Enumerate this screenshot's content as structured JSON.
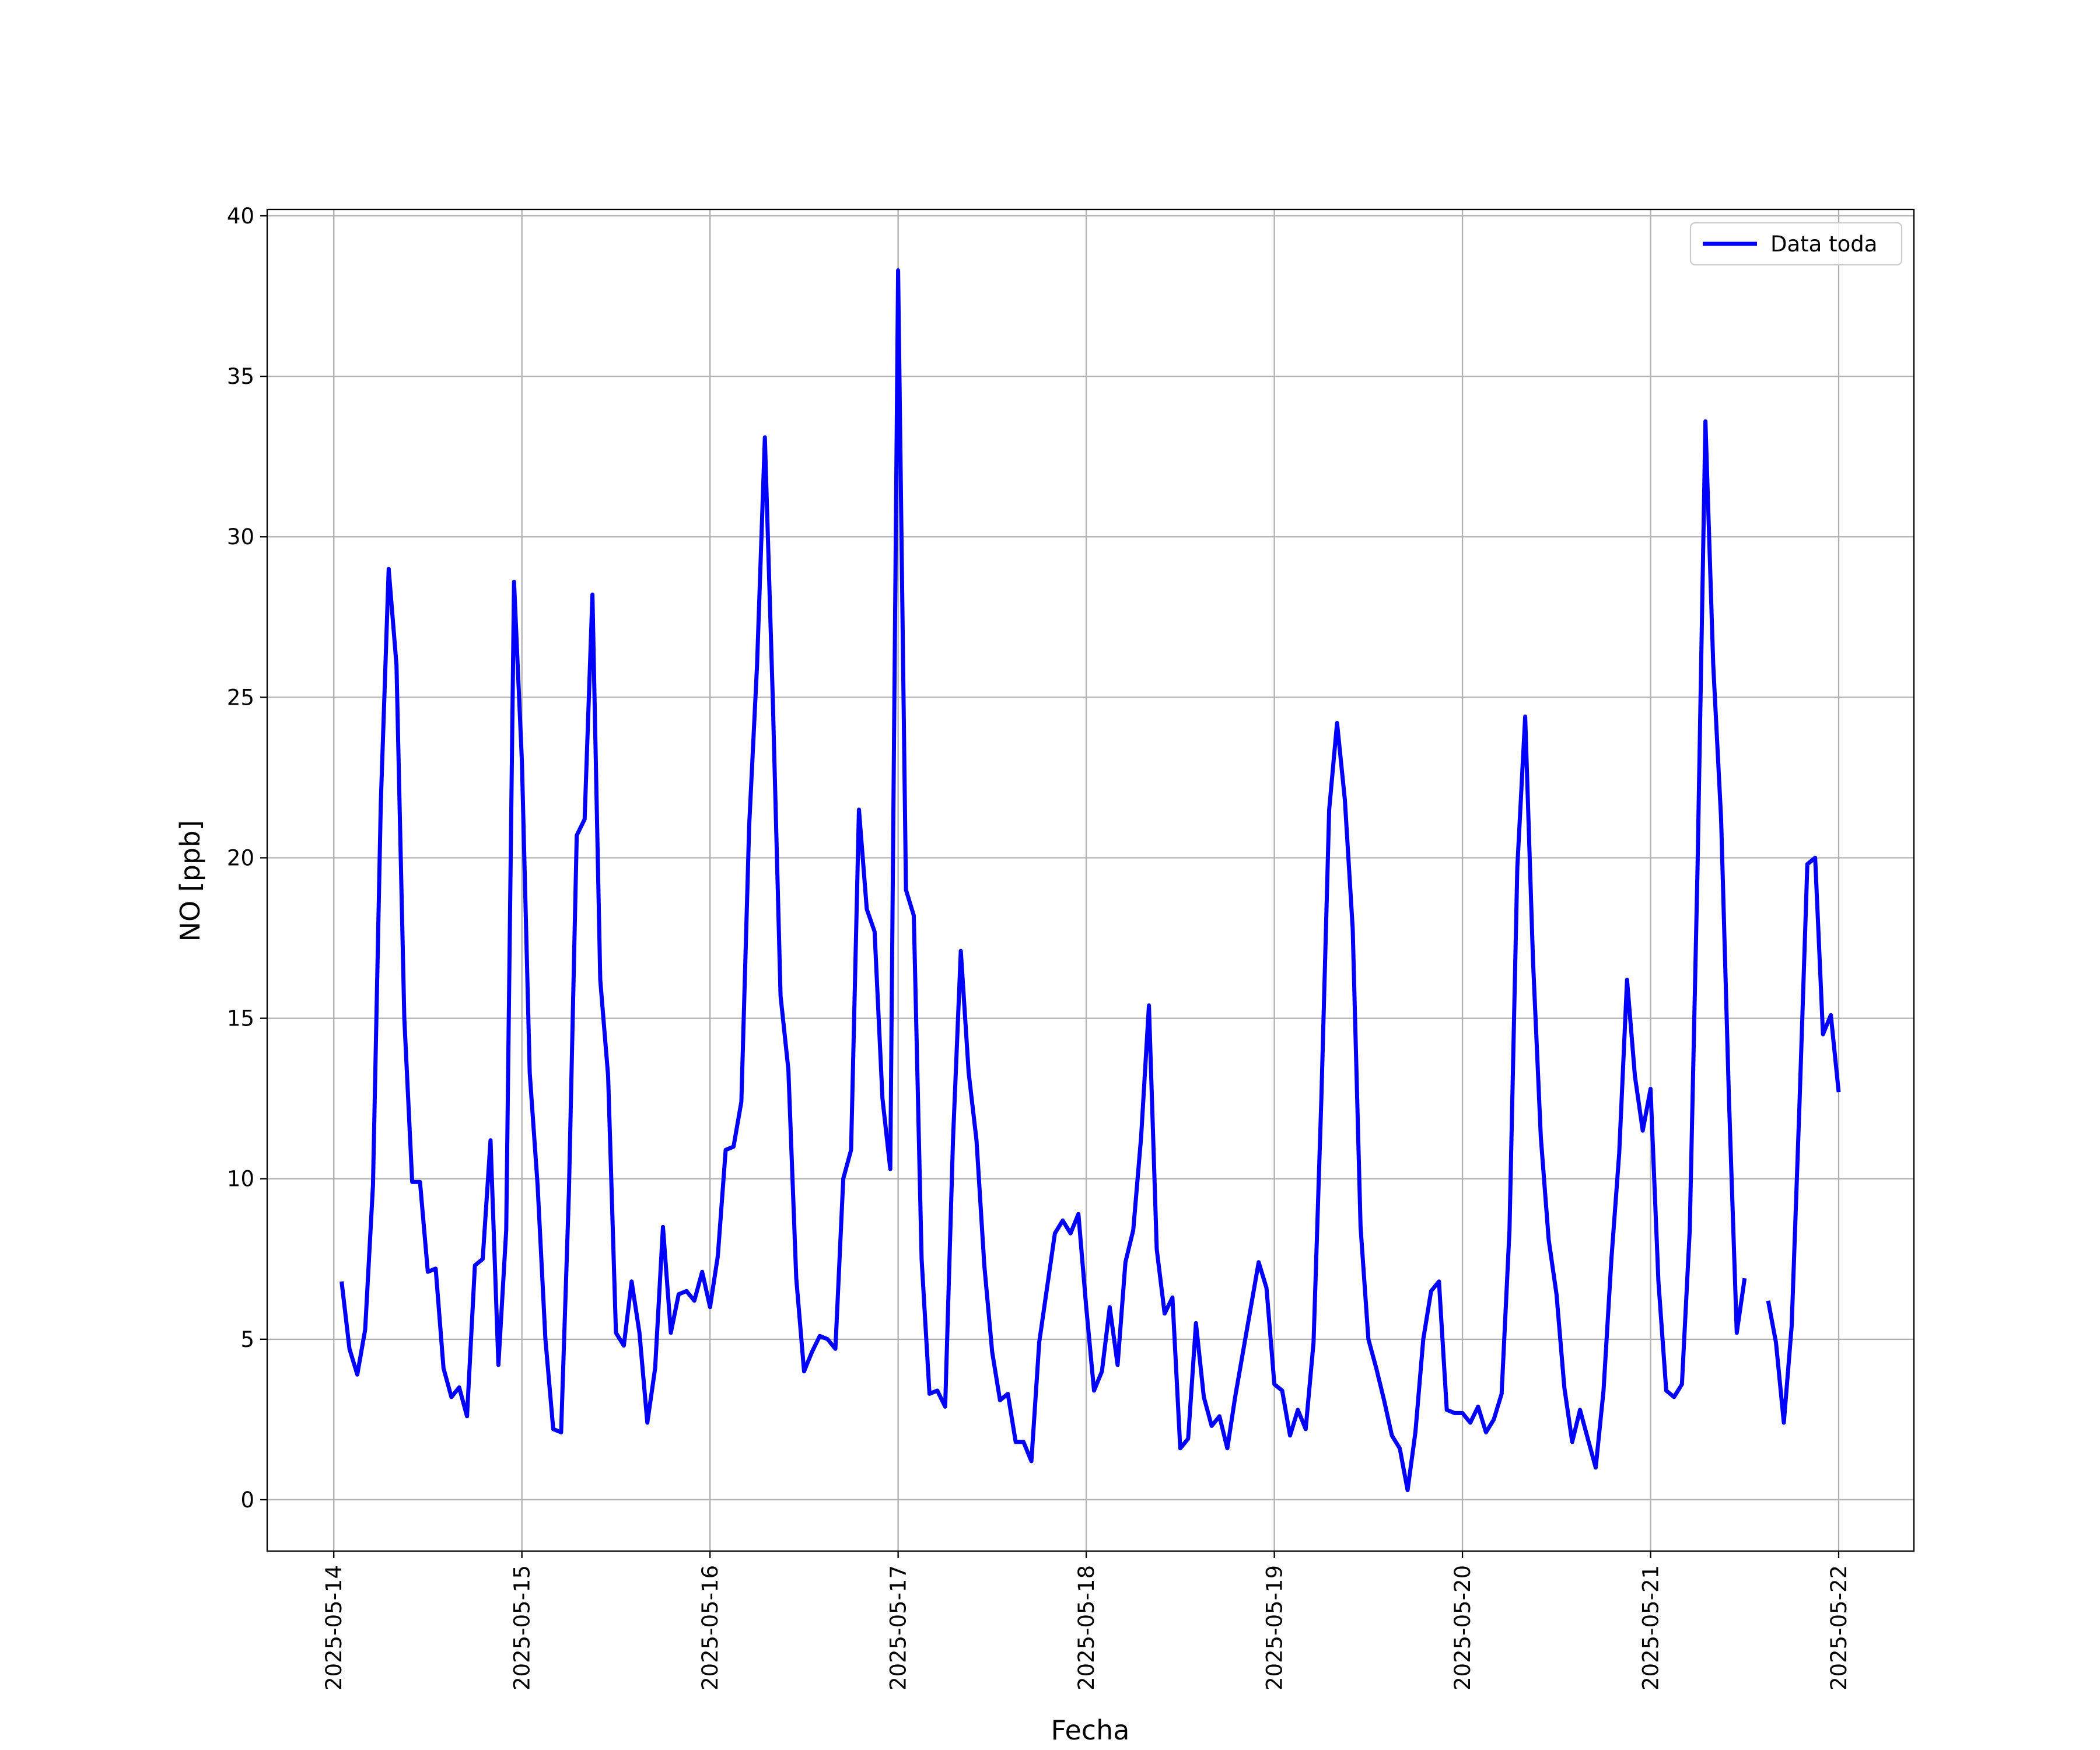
{
  "chart_data": {
    "type": "line",
    "x_label": "Fecha",
    "y_label": "NO [ppb]",
    "x": [
      1,
      2,
      3,
      4,
      5,
      6,
      7,
      8,
      9,
      10,
      11,
      12,
      13,
      14,
      15,
      16,
      17,
      18,
      19,
      20,
      21,
      22,
      23,
      24,
      25,
      26,
      27,
      28,
      29,
      30,
      31,
      32,
      33,
      34,
      35,
      36,
      37,
      38,
      39,
      40,
      41,
      42,
      43,
      44,
      45,
      46,
      47,
      48,
      49,
      50,
      51,
      52,
      53,
      54,
      55,
      56,
      57,
      58,
      59,
      60,
      61,
      62,
      63,
      64,
      65,
      66,
      67,
      68,
      69,
      70,
      71,
      72,
      73,
      74,
      75,
      76,
      77,
      78,
      79,
      80,
      81,
      82,
      83,
      84,
      85,
      86,
      87,
      88,
      89,
      90,
      91,
      92,
      93,
      94,
      95,
      96,
      97,
      98,
      99,
      100,
      101,
      102,
      103,
      104,
      105,
      106,
      107,
      108,
      109,
      110,
      111,
      112,
      113,
      114,
      115,
      116,
      117,
      118,
      119,
      120,
      121,
      122,
      123,
      124,
      125,
      126,
      127,
      128,
      129,
      130,
      131,
      132,
      133,
      134,
      135,
      136,
      137,
      138,
      139,
      140,
      141,
      142,
      143,
      144,
      145,
      146,
      147,
      148,
      149,
      150,
      151,
      152,
      153,
      154,
      155,
      156,
      157,
      158,
      159,
      160,
      161,
      162,
      163,
      164,
      165,
      166,
      167,
      168,
      169,
      170,
      171,
      172,
      173,
      174,
      175,
      176,
      177,
      178,
      179,
      180,
      181,
      182,
      183,
      184,
      185,
      186,
      187,
      188,
      189,
      190,
      191,
      192
    ],
    "series": [
      {
        "name": "Data toda",
        "color": "#0000ff",
        "values": [
          6.8,
          4.7,
          3.9,
          5.3,
          9.8,
          21.7,
          29.0,
          26.0,
          15.0,
          9.9,
          9.9,
          7.1,
          7.2,
          4.1,
          3.2,
          3.5,
          2.6,
          7.3,
          7.5,
          11.2,
          4.2,
          8.4,
          28.6,
          23.0,
          13.3,
          9.8,
          5.0,
          2.2,
          2.1,
          9.6,
          20.7,
          21.2,
          28.2,
          16.2,
          13.2,
          5.2,
          4.8,
          6.8,
          5.2,
          2.4,
          4.1,
          8.5,
          5.2,
          6.4,
          6.5,
          6.2,
          7.1,
          6.0,
          7.6,
          10.9,
          11.0,
          12.4,
          21.0,
          26.0,
          33.1,
          25.0,
          15.7,
          13.4,
          6.9,
          4.0,
          4.6,
          5.1,
          5.0,
          4.7,
          10.0,
          10.9,
          21.5,
          18.4,
          17.7,
          12.5,
          10.3,
          38.3,
          19.0,
          18.2,
          7.5,
          3.3,
          3.4,
          2.9,
          11.2,
          17.1,
          13.3,
          11.2,
          7.3,
          4.6,
          3.1,
          3.3,
          1.8,
          1.8,
          1.2,
          4.9,
          6.6,
          8.3,
          8.7,
          8.3,
          8.9,
          6.0,
          3.4,
          4.0,
          6.0,
          4.2,
          7.4,
          8.4,
          11.3,
          15.4,
          7.8,
          5.8,
          6.3,
          1.6,
          1.9,
          5.5,
          3.2,
          2.3,
          2.6,
          1.6,
          3.2,
          4.6,
          6.0,
          7.4,
          6.6,
          3.6,
          3.4,
          2.0,
          2.8,
          2.2,
          4.9,
          12.5,
          21.5,
          24.2,
          21.8,
          17.8,
          8.5,
          5.0,
          4.1,
          3.1,
          2.0,
          1.6,
          0.3,
          2.1,
          5.0,
          6.5,
          6.8,
          2.8,
          2.7,
          2.7,
          2.4,
          2.9,
          2.1,
          2.5,
          3.3,
          8.4,
          19.7,
          24.4,
          16.8,
          11.3,
          8.1,
          6.4,
          3.5,
          1.8,
          2.8,
          1.9,
          1.0,
          3.4,
          7.5,
          10.8,
          16.2,
          13.2,
          11.5,
          12.8,
          6.8,
          3.4,
          3.2,
          3.6,
          8.4,
          19.8,
          33.6,
          26.0,
          21.2,
          12.5,
          5.2,
          6.9,
          null,
          null,
          6.2,
          4.9,
          2.4,
          5.4,
          12.3,
          19.8,
          20.0,
          14.5,
          15.1,
          12.7
        ]
      }
    ],
    "xlim": [
      -8.5,
      201.6
    ],
    "xticks": [
      {
        "value": 0,
        "label": "2025-05-14"
      },
      {
        "value": 24,
        "label": "2025-05-15"
      },
      {
        "value": 48,
        "label": "2025-05-16"
      },
      {
        "value": 72,
        "label": "2025-05-17"
      },
      {
        "value": 96,
        "label": "2025-05-18"
      },
      {
        "value": 120,
        "label": "2025-05-19"
      },
      {
        "value": 144,
        "label": "2025-05-20"
      },
      {
        "value": 168,
        "label": "2025-05-21"
      },
      {
        "value": 192,
        "label": "2025-05-22"
      }
    ],
    "ylim": [
      -1.6,
      40.2
    ],
    "yticks": [
      0,
      5,
      10,
      15,
      20,
      25,
      30,
      35,
      40
    ],
    "grid": true,
    "legend": "upper right"
  }
}
